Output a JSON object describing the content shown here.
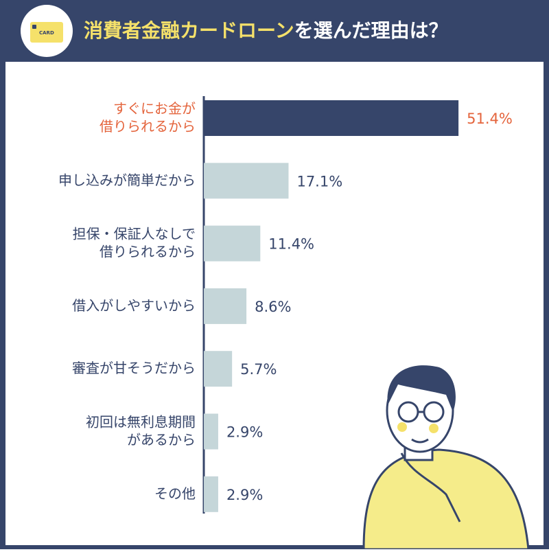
{
  "chart_data": {
    "type": "bar",
    "title": [
      "消費者金融カードローン",
      "を選んだ理由は？"
    ],
    "title_colors": [
      "#f5e16a",
      "#ffffff"
    ],
    "icon_label": "CARD",
    "categories": [
      "すぐにお金が\n借りられるから",
      "申し込みが簡単だから",
      "担保・保証人なしで\n借りられるから",
      "借入がしやすいから",
      "審査が甘そうだから",
      "初回は無利息期間\nがあるから",
      "その他"
    ],
    "values": [
      51.4,
      17.1,
      11.4,
      8.6,
      5.7,
      2.9,
      2.9
    ],
    "value_labels": [
      "51.4%",
      "17.1%",
      "11.4%",
      "8.6%",
      "5.7%",
      "2.9%",
      "2.9%"
    ],
    "colors": [
      "#36456a",
      "#c5d6d9",
      "#c5d6d9",
      "#c5d6d9",
      "#c5d6d9",
      "#c5d6d9",
      "#c5d6d9"
    ],
    "label_colors": [
      "#e4643c",
      "#36456a",
      "#36456a",
      "#36456a",
      "#36456a",
      "#36456a",
      "#36456a"
    ]
  }
}
